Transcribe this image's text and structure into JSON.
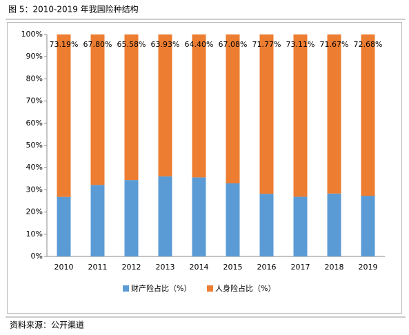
{
  "chart_data": {
    "type": "stacked_bar",
    "title": "图 5：2010-2019 年我国险种结构",
    "source": "资料来源：公开渠道",
    "categories": [
      "2010",
      "2011",
      "2012",
      "2013",
      "2014",
      "2015",
      "2016",
      "2017",
      "2018",
      "2019"
    ],
    "series": [
      {
        "name": "财产险占比（%）",
        "color": "#5b9bd5",
        "values": [
          26.81,
          32.2,
          34.42,
          36.07,
          35.6,
          32.92,
          28.23,
          26.89,
          28.33,
          27.32
        ]
      },
      {
        "name": "人身险占比（%）",
        "color": "#ed7d31",
        "values": [
          73.19,
          67.8,
          65.58,
          63.93,
          64.4,
          67.08,
          71.77,
          73.11,
          71.67,
          72.68
        ],
        "value_labels": [
          "73.19%",
          "67.80%",
          "65.58%",
          "63.93%",
          "64.40%",
          "67.08%",
          "71.77%",
          "73.11%",
          "71.67%",
          "72.68%"
        ]
      }
    ],
    "ylim": [
      0,
      100
    ],
    "yticks": [
      {
        "value": 0,
        "label": "0%"
      },
      {
        "value": 10,
        "label": "10%"
      },
      {
        "value": 20,
        "label": "20%"
      },
      {
        "value": 30,
        "label": "30%"
      },
      {
        "value": 40,
        "label": "40%"
      },
      {
        "value": 50,
        "label": "50%"
      },
      {
        "value": 60,
        "label": "60%"
      },
      {
        "value": 70,
        "label": "70%"
      },
      {
        "value": 80,
        "label": "80%"
      },
      {
        "value": 90,
        "label": "90%"
      },
      {
        "value": 100,
        "label": "100%"
      }
    ],
    "legend": "bottom"
  }
}
